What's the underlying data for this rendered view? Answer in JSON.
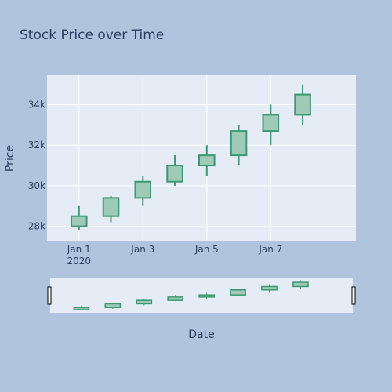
{
  "chart_data": {
    "type": "candlestick",
    "title": "Stock Price over Time",
    "xlabel": "Date",
    "ylabel": "Price",
    "x_ticks": [
      {
        "date": "2020-01-01",
        "label": "Jan 1",
        "sublabel": "2020"
      },
      {
        "date": "2020-01-03",
        "label": "Jan 3",
        "sublabel": ""
      },
      {
        "date": "2020-01-05",
        "label": "Jan 5",
        "sublabel": ""
      },
      {
        "date": "2020-01-07",
        "label": "Jan 7",
        "sublabel": ""
      }
    ],
    "y_ticks": [
      {
        "value": 28000,
        "label": "28k"
      },
      {
        "value": 30000,
        "label": "30k"
      },
      {
        "value": 32000,
        "label": "32k"
      },
      {
        "value": 34000,
        "label": "34k"
      }
    ],
    "xlim": [
      "2019-12-31T00:00",
      "2020-01-09T16:00"
    ],
    "ylim": [
      27250,
      35450
    ],
    "grid": true,
    "rangeslider": true,
    "colors": {
      "paper": "#b0c4de",
      "plot": "#e5ecf6",
      "grid": "#ffffff",
      "increasing_line": "#3d9970",
      "increasing_fill": "#9ecab7",
      "text": "#2a3f5f"
    },
    "candles": [
      {
        "date": "2020-01-01",
        "open": 28000,
        "high": 29000,
        "low": 27800,
        "close": 28500
      },
      {
        "date": "2020-01-02",
        "open": 28500,
        "high": 29500,
        "low": 28200,
        "close": 29400
      },
      {
        "date": "2020-01-03",
        "open": 29400,
        "high": 30500,
        "low": 29000,
        "close": 30200
      },
      {
        "date": "2020-01-04",
        "open": 30200,
        "high": 31500,
        "low": 30000,
        "close": 31000
      },
      {
        "date": "2020-01-05",
        "open": 31000,
        "high": 32000,
        "low": 30500,
        "close": 31500
      },
      {
        "date": "2020-01-06",
        "open": 31500,
        "high": 33000,
        "low": 31000,
        "close": 32700
      },
      {
        "date": "2020-01-07",
        "open": 32700,
        "high": 34000,
        "low": 32000,
        "close": 33500
      },
      {
        "date": "2020-01-08",
        "open": 33500,
        "high": 35000,
        "low": 33000,
        "close": 34500
      }
    ]
  }
}
